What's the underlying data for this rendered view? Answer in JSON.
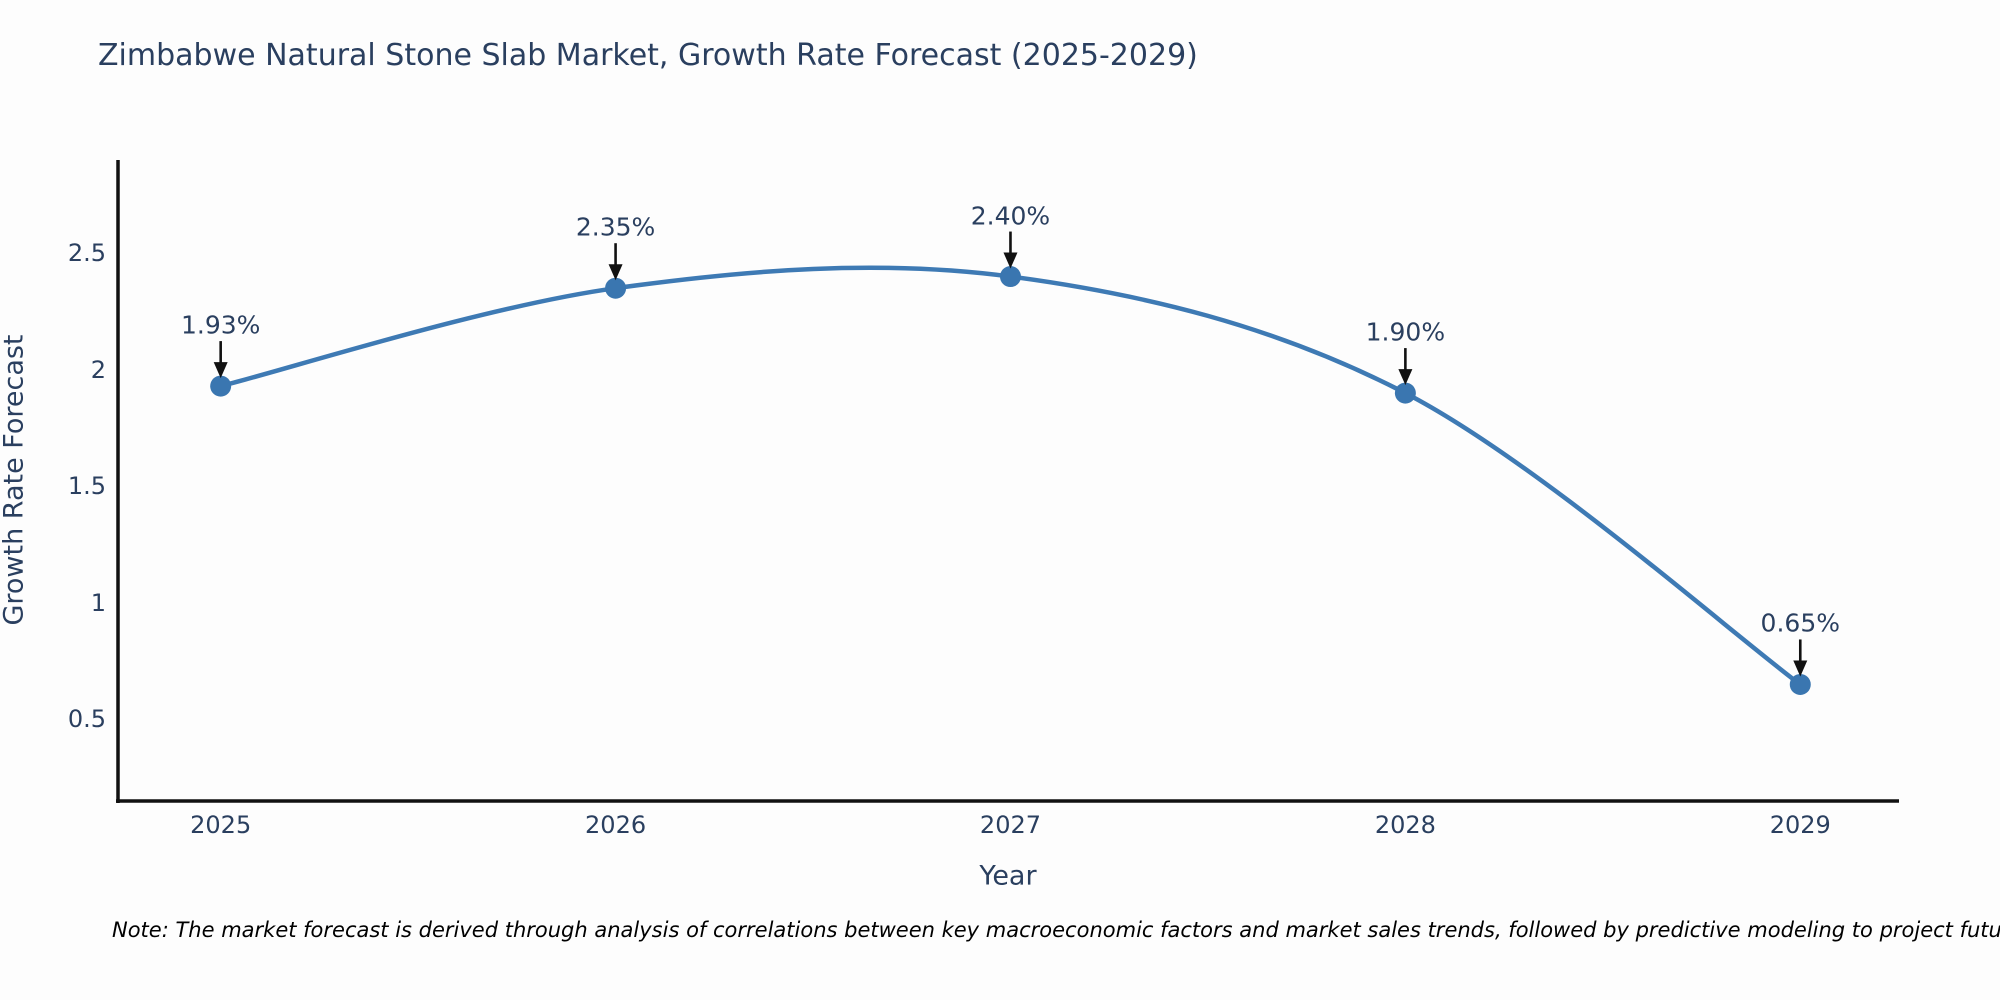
{
  "figure": {
    "title": "Zimbabwe Natural Stone Slab Market, Growth Rate Forecast (2025-2029)",
    "note": "Note: The market forecast is derived through analysis of correlations between key macroeconomic factors and market sales trends, followed by predictive modeling to project future sales"
  },
  "chart_data": {
    "type": "line",
    "title": "Zimbabwe Natural Stone Slab Market, Growth Rate Forecast (2025-2029)",
    "xlabel": "Year",
    "ylabel": "Growth Rate Forecast",
    "x": [
      2025,
      2026,
      2027,
      2028,
      2029
    ],
    "y": [
      1.93,
      2.35,
      2.4,
      1.9,
      0.65
    ],
    "point_labels": [
      "1.93%",
      "2.35%",
      "2.40%",
      "1.90%",
      "0.65%"
    ],
    "xtick_labels": [
      "2025",
      "2026",
      "2027",
      "2028",
      "2029"
    ],
    "yticks": [
      0.5,
      1,
      1.5,
      2,
      2.5
    ],
    "ytick_labels": [
      "0.5",
      "1",
      "1.5",
      "2",
      "2.5"
    ],
    "xlim": [
      2024.74,
      2029.25
    ],
    "ylim": [
      0.15,
      2.9
    ],
    "line_shape": "spline",
    "grid": false,
    "legend": "none",
    "colors": {
      "line": "#3e7ab4",
      "marker": "#3a76b0",
      "text": "#2a3f5f",
      "axis": "#111111",
      "arrow": "#111111",
      "background": "#fdfdfd",
      "note": "#000000"
    }
  }
}
